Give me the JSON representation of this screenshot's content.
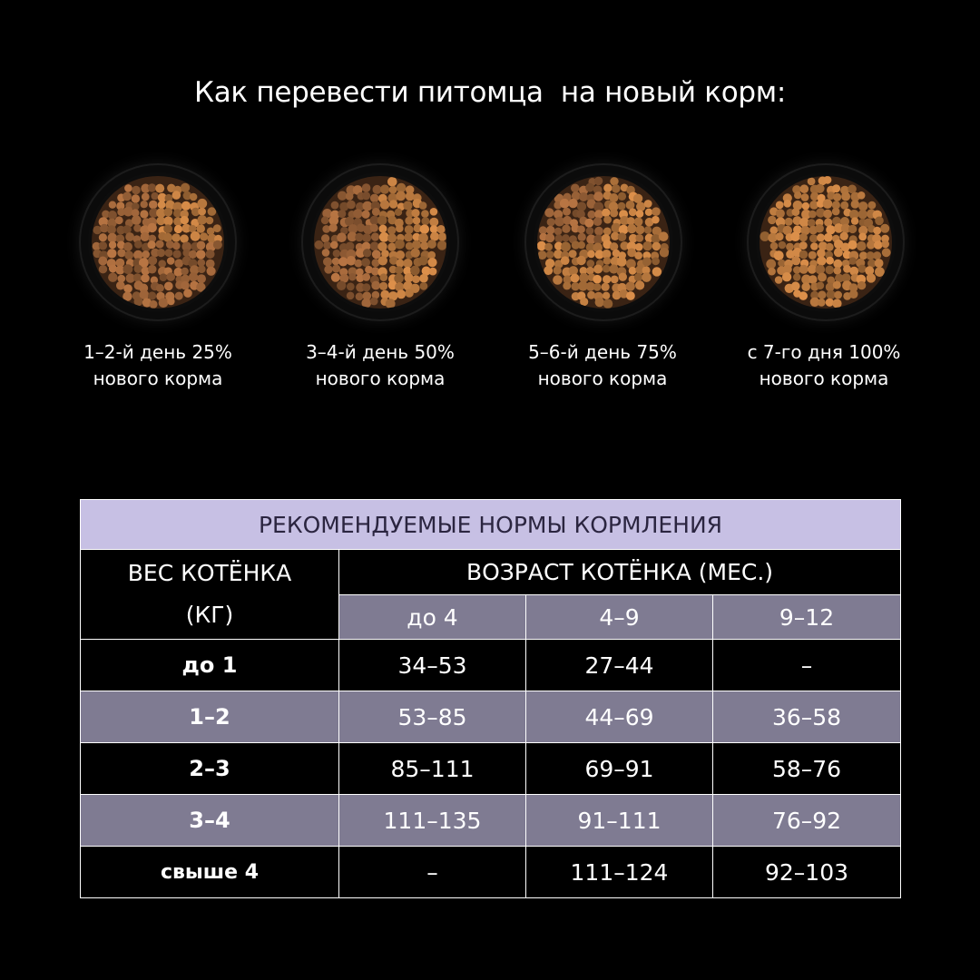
{
  "title": "Как перевести питомца  на новый корм:",
  "steps": [
    {
      "line1": "1–2-й день 25%",
      "line2": "нового корма",
      "new_share": 0.25
    },
    {
      "line1": "3–4-й день 50%",
      "line2": "нового корма",
      "new_share": 0.5
    },
    {
      "line1": "5–6-й день 75%",
      "line2": "нового корма",
      "new_share": 0.75
    },
    {
      "line1": "с 7-го дня 100%",
      "line2": "нового корма",
      "new_share": 1.0
    }
  ],
  "colors": {
    "old_kibble": "#9a6238",
    "new_kibble": "#b8783e",
    "header_bg": "#c7c0e4",
    "alt_row_bg": "#7f7b92"
  },
  "table": {
    "title": "РЕКОМЕНДУЕМЫЕ НОРМЫ КОРМЛЕНИЯ",
    "weight_header_line1": "ВЕС КОТЁНКА",
    "weight_header_line2": "(КГ)",
    "age_header": "ВОЗРАСТ КОТЁНКА (МЕС.)",
    "age_columns": [
      "до 4",
      "4–9",
      "9–12"
    ],
    "rows": [
      {
        "weight": "до 1",
        "values": [
          "34–53",
          "27–44",
          "–"
        ]
      },
      {
        "weight": "1–2",
        "values": [
          "53–85",
          "44–69",
          "36–58"
        ]
      },
      {
        "weight": "2–3",
        "values": [
          "85–111",
          "69–91",
          "58–76"
        ]
      },
      {
        "weight": "3–4",
        "values": [
          "111–135",
          "91–111",
          "76–92"
        ]
      },
      {
        "weight": "свыше 4",
        "values": [
          "–",
          "111–124",
          "92–103"
        ]
      }
    ]
  }
}
